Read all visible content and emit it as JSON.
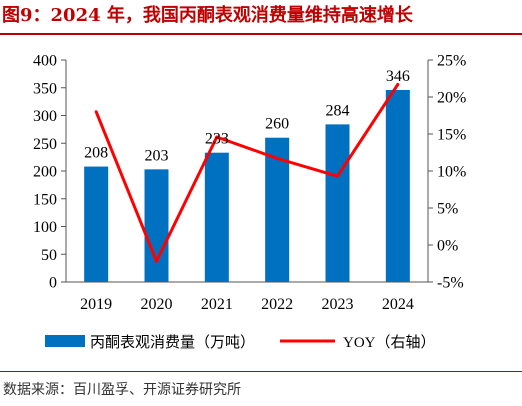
{
  "header": {
    "title": "图9：2024 年，我国丙酮表观消费量维持高速增长"
  },
  "footer": {
    "source": "数据来源：百川盈孚、开源证券研究所"
  },
  "colors": {
    "title": "#c00000",
    "bar": "#0070c0",
    "line": "#ff0000",
    "axis": "#555555",
    "text": "#000000"
  },
  "chart_data": {
    "type": "bar",
    "categories": [
      "2019",
      "2020",
      "2021",
      "2022",
      "2023",
      "2024"
    ],
    "series": [
      {
        "name": "丙酮表观消费量（万吨）",
        "type": "bar",
        "axis": "left",
        "values": [
          208,
          203,
          233,
          260,
          284,
          346
        ]
      },
      {
        "name": "YOY（右轴）",
        "type": "line",
        "axis": "right",
        "values": [
          18.0,
          -2.2,
          14.6,
          11.7,
          9.3,
          21.7
        ]
      }
    ],
    "y_left": {
      "min": 0,
      "max": 400,
      "step": 50,
      "ticks": [
        "0",
        "50",
        "100",
        "150",
        "200",
        "250",
        "300",
        "350",
        "400"
      ]
    },
    "y_right": {
      "min": -5,
      "max": 25,
      "step": 5,
      "ticks": [
        "-5%",
        "0%",
        "5%",
        "10%",
        "15%",
        "20%",
        "25%"
      ]
    },
    "bar_labels": [
      "208",
      "203",
      "233",
      "260",
      "284",
      "346"
    ],
    "grid": false,
    "legend_position": "bottom"
  }
}
